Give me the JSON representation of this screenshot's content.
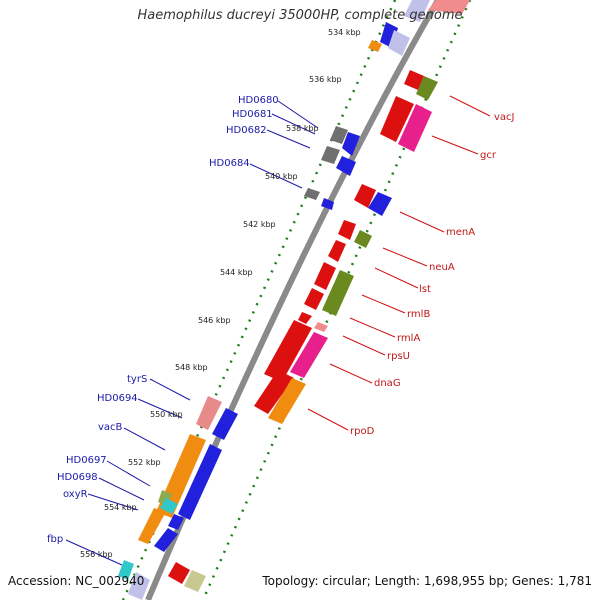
{
  "header": {
    "title": "Haemophilus ducreyi 35000HP, complete genome"
  },
  "footer": {
    "accession": "Accession: NC_002940",
    "summary": "Topology: circular; Length: 1,698,955 bp; Genes: 1,781"
  },
  "colors": {
    "backbone": "#8a8a8a",
    "ruler": "#1e7d1e",
    "leader_left": "#1a1aa8",
    "leader_right": "#d01010",
    "label_left": "#1a1aa8",
    "label_right": "#c01818"
  },
  "kbp_ticks": [
    {
      "label": "534 kbp"
    },
    {
      "label": "536 kbp"
    },
    {
      "label": "538 kbp"
    },
    {
      "label": "540 kbp"
    },
    {
      "label": "542 kbp"
    },
    {
      "label": "544 kbp"
    },
    {
      "label": "546 kbp"
    },
    {
      "label": "548 kbp"
    },
    {
      "label": "550 kbp"
    },
    {
      "label": "552 kbp"
    },
    {
      "label": "554 kbp"
    },
    {
      "label": "556 kbp"
    }
  ],
  "left_labels": [
    {
      "text": "HD0680"
    },
    {
      "text": "HD0681"
    },
    {
      "text": "HD0682"
    },
    {
      "text": "HD0684"
    },
    {
      "text": "tyrS"
    },
    {
      "text": "HD0694"
    },
    {
      "text": "vacB"
    },
    {
      "text": "HD0697"
    },
    {
      "text": "HD0698"
    },
    {
      "text": "oxyR"
    },
    {
      "text": "fbp"
    }
  ],
  "right_labels": [
    {
      "text": "vacJ"
    },
    {
      "text": "gcr"
    },
    {
      "text": "menA"
    },
    {
      "text": "neuA"
    },
    {
      "text": "lst"
    },
    {
      "text": "rmlB"
    },
    {
      "text": "rmlA"
    },
    {
      "text": "rpsU"
    },
    {
      "text": "dnaG"
    },
    {
      "text": "rpoD"
    }
  ]
}
